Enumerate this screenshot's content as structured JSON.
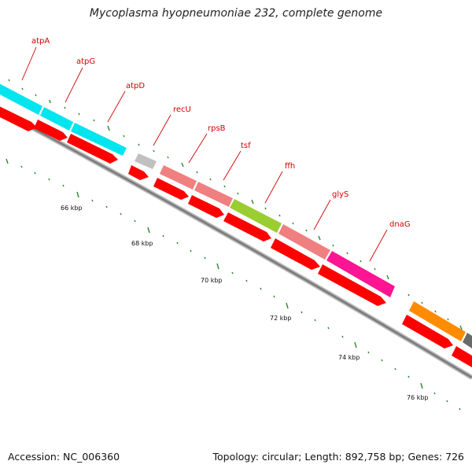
{
  "title": "Mycoplasma hyopneumoniae 232, complete genome",
  "footer": {
    "accession": "Accession: NC_006360",
    "summary": "Topology: circular; Length: 892,758 bp; Genes: 726"
  },
  "colors": {
    "label_text": "#d40000",
    "tick": "#2a8a2a",
    "backbone": "#808080",
    "cds_strand": "#ff0000"
  },
  "kbp_labels": [
    "66 kbp",
    "68 kbp",
    "70 kbp",
    "72 kbp",
    "74 kbp",
    "76 kbp"
  ],
  "gene_labels": [
    "atpA",
    "atpG",
    "atpD",
    "recU",
    "rpsB",
    "tsf",
    "ffh",
    "glyS",
    "dnaG"
  ],
  "category_colors": [
    "#00e5ee",
    "#c0c0c0",
    "#f08080",
    "#9acd32",
    "#ff1493",
    "#ff8c00",
    "#696969"
  ]
}
